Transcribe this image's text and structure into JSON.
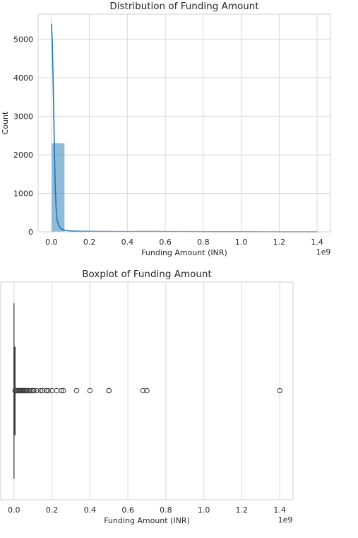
{
  "chart_data": [
    {
      "type": "bar",
      "title": "Distribution of Funding Amount",
      "xlabel": "Funding Amount (INR)",
      "ylabel": "Count",
      "x_offset_label": "1e9",
      "xlim": [
        -0.07,
        1.47
      ],
      "ylim": [
        0,
        5650
      ],
      "x_ticks": [
        0.0,
        0.2,
        0.4,
        0.6,
        0.8,
        1.0,
        1.2,
        1.4
      ],
      "x_tick_labels": [
        "0.0",
        "0.2",
        "0.4",
        "0.6",
        "0.8",
        "1.0",
        "1.2",
        "1.4"
      ],
      "y_ticks": [
        0,
        1000,
        2000,
        3000,
        4000,
        5000
      ],
      "y_tick_labels": [
        "0",
        "1000",
        "2000",
        "3000",
        "4000",
        "5000"
      ],
      "bins": [
        {
          "x0": 0.0,
          "x1": 0.07,
          "count": 2310
        },
        {
          "x0": 0.07,
          "x1": 0.14,
          "count": 12
        },
        {
          "x0": 0.14,
          "x1": 0.21,
          "count": 4
        },
        {
          "x0": 0.21,
          "x1": 0.28,
          "count": 3
        },
        {
          "x0": 0.49,
          "x1": 0.56,
          "count": 2
        },
        {
          "x0": 0.63,
          "x1": 0.7,
          "count": 2
        },
        {
          "x0": 1.33,
          "x1": 1.4,
          "count": 1
        }
      ],
      "kde": {
        "x": [
          0.0,
          0.005,
          0.01,
          0.015,
          0.02,
          0.025,
          0.03,
          0.04,
          0.05,
          0.07,
          0.1,
          0.15,
          0.2,
          0.3,
          0.4,
          0.5,
          0.6,
          0.7,
          0.8,
          1.0,
          1.2,
          1.4
        ],
        "y": [
          5400,
          4900,
          3700,
          2300,
          1200,
          600,
          300,
          150,
          80,
          45,
          25,
          18,
          12,
          8,
          6,
          10,
          5,
          6,
          4,
          3,
          2,
          2
        ]
      },
      "bar_color": "#1f77b4",
      "line_color": "#1f77b4",
      "grid": true
    },
    {
      "type": "boxplot",
      "title": "Boxplot of Funding Amount",
      "xlabel": "Funding Amount (INR)",
      "x_offset_label": "1e9",
      "xlim": [
        -0.07,
        1.47
      ],
      "x_ticks": [
        0.0,
        0.2,
        0.4,
        0.6,
        0.8,
        1.0,
        1.2,
        1.4
      ],
      "x_tick_labels": [
        "0.0",
        "0.2",
        "0.4",
        "0.6",
        "0.8",
        "1.0",
        "1.2",
        "1.4"
      ],
      "box": {
        "q1": 0.0002,
        "median": 0.0006,
        "q3": 0.002,
        "whisker_low": 0.0,
        "whisker_high": 0.005
      },
      "outliers": [
        0.006,
        0.01,
        0.015,
        0.02,
        0.025,
        0.03,
        0.035,
        0.04,
        0.045,
        0.05,
        0.055,
        0.06,
        0.065,
        0.07,
        0.08,
        0.09,
        0.1,
        0.105,
        0.12,
        0.14,
        0.15,
        0.17,
        0.18,
        0.2,
        0.225,
        0.25,
        0.26,
        0.33,
        0.4,
        0.5,
        0.5,
        0.68,
        0.7,
        1.4
      ],
      "grid": true
    }
  ]
}
